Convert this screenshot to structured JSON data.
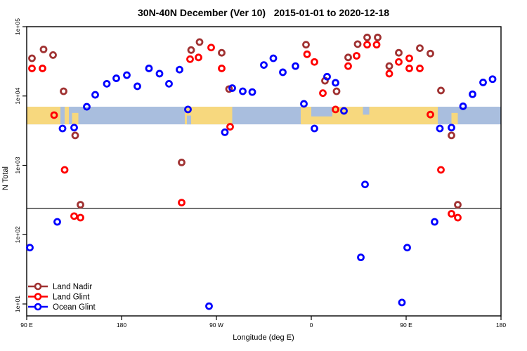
{
  "chart_data": {
    "type": "scatter",
    "title": "30N-40N December (Ver 10)   2015-01-01 to 2020-12-18",
    "xlabel": "Longitude (deg E)",
    "ylabel": "N Total",
    "x_axis": {
      "range_deg": [
        90,
        540
      ],
      "tick_degs": [
        90,
        180,
        270,
        360,
        450,
        540
      ],
      "tick_labels": [
        "90 E",
        "180",
        "90 W",
        "0",
        "90 E",
        "180"
      ]
    },
    "y_axis": {
      "scale": "log",
      "tick_values": [
        100000,
        10000,
        1000,
        100,
        10
      ],
      "tick_labels": [
        "1e+05",
        "1e+04",
        "1e+03",
        "1e+02",
        "1e+01"
      ]
    },
    "reference_line_value": 240,
    "map_band": {
      "top_value": 7000,
      "bottom_value": 3900,
      "land_color": "#F7D87E",
      "ocean_color": "#A9BEDE",
      "land_segments": [
        {
          "from": 90,
          "to": 122,
          "anchor": "full",
          "frac": 1
        },
        {
          "from": 126,
          "to": 130,
          "anchor": "full",
          "frac": 1
        },
        {
          "from": 133,
          "to": 139,
          "anchor": "bottom",
          "frac": 0.65
        },
        {
          "from": 240,
          "to": 285,
          "anchor": "full",
          "frac": 1
        },
        {
          "from": 350,
          "to": 480,
          "anchor": "full",
          "frac": 1
        },
        {
          "from": 493,
          "to": 499,
          "anchor": "bottom",
          "frac": 0.65
        }
      ],
      "ocean_patches": [
        {
          "from": 242,
          "to": 246,
          "anchor": "bottom",
          "frac": 0.5
        },
        {
          "from": 360,
          "to": 380,
          "anchor": "top",
          "frac": 0.55
        },
        {
          "from": 409,
          "to": 415,
          "anchor": "top",
          "frac": 0.45
        }
      ]
    },
    "series": [
      {
        "name": "Land Nadir",
        "color": "#A03232",
        "points": [
          [
            95,
            35000
          ],
          [
            106,
            47000
          ],
          [
            115,
            39000
          ],
          [
            125,
            11700
          ],
          [
            136,
            2700
          ],
          [
            141,
            270
          ],
          [
            237,
            1100
          ],
          [
            246,
            46000
          ],
          [
            254,
            60000
          ],
          [
            275,
            42000
          ],
          [
            282,
            12600
          ],
          [
            355,
            55000
          ],
          [
            373,
            16600
          ],
          [
            384,
            11700
          ],
          [
            395,
            36000
          ],
          [
            404,
            56000
          ],
          [
            413,
            70000
          ],
          [
            423,
            70000
          ],
          [
            434,
            27000
          ],
          [
            443,
            42000
          ],
          [
            463,
            49000
          ],
          [
            473,
            41000
          ],
          [
            483,
            12000
          ],
          [
            493,
            2700
          ],
          [
            499,
            270
          ]
        ]
      },
      {
        "name": "Land Glint",
        "color": "#FF0000",
        "points": [
          [
            95,
            25000
          ],
          [
            105,
            25000
          ],
          [
            116,
            5300
          ],
          [
            126,
            860
          ],
          [
            135,
            185
          ],
          [
            141,
            176
          ],
          [
            237,
            290
          ],
          [
            245,
            34000
          ],
          [
            253,
            36000
          ],
          [
            265,
            50000
          ],
          [
            275,
            25000
          ],
          [
            283,
            3600
          ],
          [
            356,
            40000
          ],
          [
            363,
            31000
          ],
          [
            371,
            11000
          ],
          [
            383,
            6400
          ],
          [
            395,
            27000
          ],
          [
            403,
            38000
          ],
          [
            413,
            55000
          ],
          [
            422,
            55000
          ],
          [
            434,
            21000
          ],
          [
            443,
            31000
          ],
          [
            453,
            35000
          ],
          [
            453,
            25000
          ],
          [
            463,
            25000
          ],
          [
            473,
            5400
          ],
          [
            483,
            860
          ],
          [
            493,
            200
          ],
          [
            499,
            176
          ]
        ]
      },
      {
        "name": "Ocean Glint",
        "color": "#0000FF",
        "points": [
          [
            93,
            65
          ],
          [
            119,
            153
          ],
          [
            124,
            3400
          ],
          [
            135,
            3500
          ],
          [
            147,
            7000
          ],
          [
            155,
            10400
          ],
          [
            166,
            15000
          ],
          [
            175,
            18000
          ],
          [
            185,
            20000
          ],
          [
            195,
            13800
          ],
          [
            206,
            25000
          ],
          [
            216,
            21000
          ],
          [
            225,
            15000
          ],
          [
            235,
            24000
          ],
          [
            243,
            6400
          ],
          [
            263,
            9.3
          ],
          [
            278,
            3000
          ],
          [
            285,
            13000
          ],
          [
            295,
            11700
          ],
          [
            304,
            11400
          ],
          [
            315,
            28000
          ],
          [
            324,
            35000
          ],
          [
            333,
            22000
          ],
          [
            345,
            27000
          ],
          [
            353,
            7700
          ],
          [
            363,
            3400
          ],
          [
            375,
            19000
          ],
          [
            383,
            15500
          ],
          [
            391,
            6100
          ],
          [
            407,
            47
          ],
          [
            411,
            530
          ],
          [
            446,
            10.5
          ],
          [
            451,
            65
          ],
          [
            477,
            153
          ],
          [
            482,
            3400
          ],
          [
            493,
            3500
          ],
          [
            504,
            7100
          ],
          [
            513,
            10600
          ],
          [
            523,
            15700
          ],
          [
            532,
            17500
          ]
        ]
      }
    ],
    "legend": {
      "items": [
        "Land Nadir",
        "Land Glint",
        "Ocean Glint"
      ]
    }
  }
}
